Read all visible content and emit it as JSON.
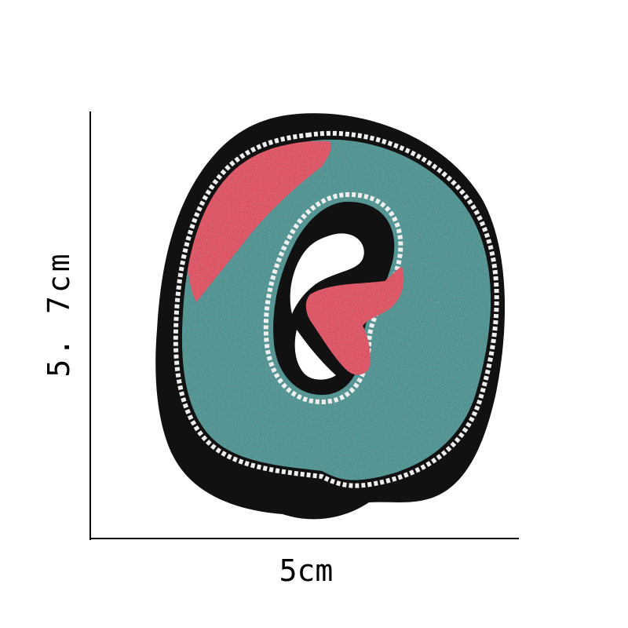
{
  "dimensions": {
    "width_label": "5cm",
    "height_label": "5. 7cm"
  },
  "colors": {
    "felt_border": "#111111",
    "chenille_teal": "#1b8c8a",
    "chenille_red": "#e2254a",
    "stitch_white": "#efefef",
    "background": "#ffffff"
  }
}
